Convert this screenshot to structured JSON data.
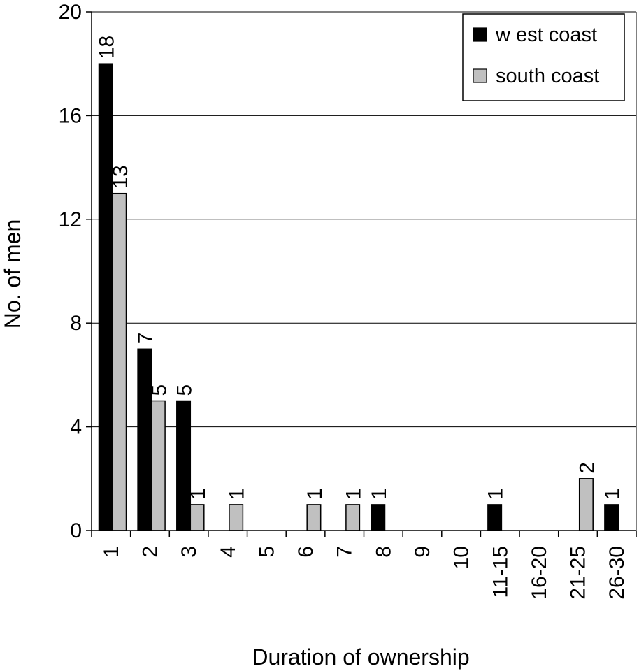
{
  "chart_data": {
    "type": "bar",
    "xlabel": "Duration of ownership",
    "ylabel": "No. of men",
    "categories": [
      "1",
      "2",
      "3",
      "4",
      "5",
      "6",
      "7",
      "8",
      "9",
      "10",
      "11-15",
      "16-20",
      "21-25",
      "26-30"
    ],
    "series": [
      {
        "name": "w est coast",
        "color": "#000000",
        "values": [
          18,
          7,
          5,
          0,
          0,
          0,
          0,
          1,
          0,
          0,
          1,
          0,
          0,
          1
        ]
      },
      {
        "name": "south coast",
        "color": "#c0c0c0",
        "values": [
          13,
          5,
          1,
          1,
          0,
          1,
          1,
          0,
          0,
          0,
          0,
          0,
          2,
          0
        ]
      }
    ],
    "ylim": [
      0,
      20
    ],
    "yticks": [
      0,
      4,
      8,
      12,
      16,
      20
    ],
    "grid": true,
    "legend": "top-right"
  }
}
